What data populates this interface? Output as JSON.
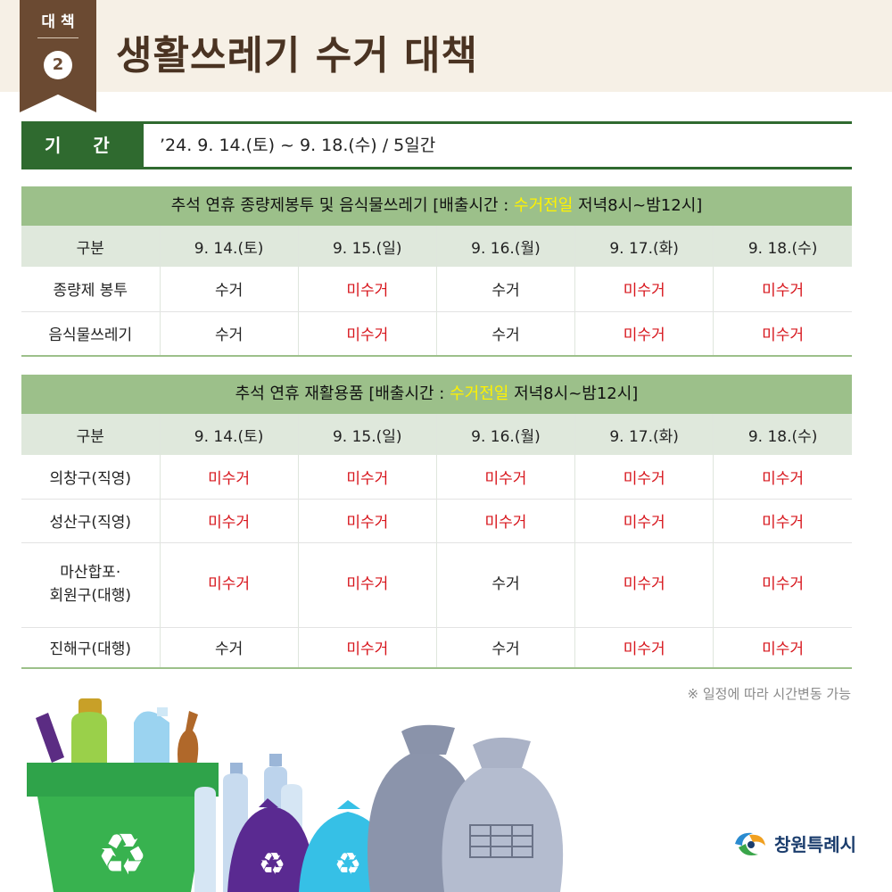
{
  "header": {
    "badge_label": "대책",
    "badge_number": "2",
    "title": "생활쓰레기 수거 대책"
  },
  "period": {
    "label": "기간",
    "value": "’24. 9. 14.(토) ~ 9. 18.(수) / 5일간"
  },
  "table1": {
    "title_prefix": "추석 연휴 종량제봉투 및 음식물쓰레기 [배출시간 : ",
    "title_highlight": "수거전일",
    "title_suffix": " 저녁8시~밤12시]",
    "columns": [
      "구분",
      "9. 14.(토)",
      "9. 15.(일)",
      "9. 16.(월)",
      "9. 17.(화)",
      "9. 18.(수)"
    ],
    "rows": [
      {
        "label": "종량제 봉투",
        "cells": [
          "수거",
          "미수거",
          "수거",
          "미수거",
          "미수거"
        ]
      },
      {
        "label": "음식물쓰레기",
        "cells": [
          "수거",
          "미수거",
          "수거",
          "미수거",
          "미수거"
        ]
      }
    ]
  },
  "table2": {
    "title_prefix": "추석 연휴 재활용품 [배출시간 : ",
    "title_highlight": "수거전일",
    "title_suffix": " 저녁8시~밤12시]",
    "columns": [
      "구분",
      "9. 14.(토)",
      "9. 15.(일)",
      "9. 16.(월)",
      "9. 17.(화)",
      "9. 18.(수)"
    ],
    "rows": [
      {
        "label": "의창구(직영)",
        "cells": [
          "미수거",
          "미수거",
          "미수거",
          "미수거",
          "미수거"
        ]
      },
      {
        "label": "성산구(직영)",
        "cells": [
          "미수거",
          "미수거",
          "미수거",
          "미수거",
          "미수거"
        ]
      },
      {
        "label_line1": "마산합포·",
        "label_line2": "회원구(대행)",
        "cells": [
          "미수거",
          "미수거",
          "수거",
          "미수거",
          "미수거"
        ]
      },
      {
        "label": "진해구(대행)",
        "cells": [
          "수거",
          "미수거",
          "수거",
          "미수거",
          "미수거"
        ]
      }
    ]
  },
  "note": "※ 일정에 따라 시간변동 가능",
  "logo": {
    "text": "창원특례시"
  },
  "colors": {
    "collected": "#222222",
    "not_collected": "#d7141b",
    "highlight": "#fff200",
    "brand_green": "#2f6a2f",
    "brown": "#6b4a32"
  }
}
